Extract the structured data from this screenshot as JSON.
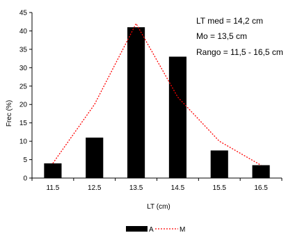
{
  "chart_data": {
    "type": "bar",
    "categories": [
      "11.5",
      "12.5",
      "13.5",
      "14.5",
      "15.5",
      "16.5"
    ],
    "series": [
      {
        "name": "A",
        "type": "bar",
        "values": [
          4.0,
          11.0,
          41.0,
          33.0,
          7.5,
          3.5
        ],
        "color": "#000000"
      },
      {
        "name": "M",
        "type": "line",
        "style": "dotted",
        "values": [
          4.0,
          20.0,
          42.0,
          22.0,
          10.0,
          3.5
        ],
        "color": "#ff0000"
      }
    ],
    "xlabel": "LT (cm)",
    "ylabel": "Frec (%)",
    "ylim": [
      0,
      45
    ],
    "yticks": [
      0,
      5,
      10,
      15,
      20,
      25,
      30,
      35,
      40,
      45
    ],
    "annotations": [
      "LT med = 14,2 cm",
      "Mo =  13,5 cm",
      "Rango = 11,5 - 16,5 cm"
    ],
    "legend": {
      "position": "bottom",
      "labels": [
        "A",
        "M"
      ]
    },
    "grid": false
  }
}
